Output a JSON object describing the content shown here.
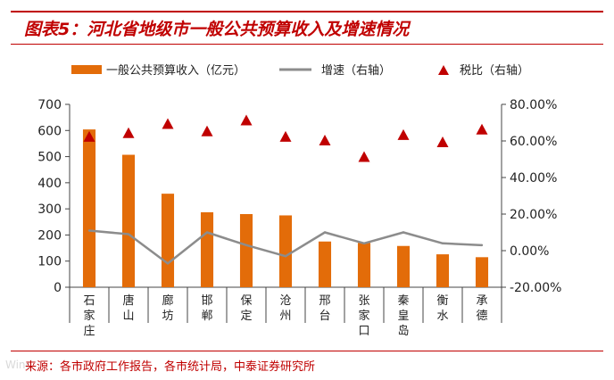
{
  "figure": {
    "title": "图表5：河北省地级市一般公共预算收入及增速情况",
    "source": "来源：各市政府工作报告，各市统计局，中泰证券研究所",
    "watermark": "Wind"
  },
  "colors": {
    "bar": "#e36c09",
    "line": "#8c8c8c",
    "marker": "#c00000",
    "rule": "#c00000"
  },
  "chart_data": {
    "type": "bar",
    "categories": [
      "石家庄",
      "唐山",
      "廊坊",
      "邯郸",
      "保定",
      "沧州",
      "邢台",
      "张家口",
      "秦皇岛",
      "衡水",
      "承德"
    ],
    "series": [
      {
        "name": "一般公共预算收入（亿元）",
        "type": "bar",
        "axis": "left",
        "values": [
          604,
          507,
          358,
          287,
          280,
          275,
          175,
          170,
          158,
          126,
          115
        ]
      },
      {
        "name": "增速（右轴）",
        "type": "line",
        "axis": "right",
        "values": [
          11,
          9,
          -7,
          10,
          3,
          -3,
          10,
          4,
          10,
          4,
          3
        ]
      },
      {
        "name": "税比（右轴）",
        "type": "scatter",
        "axis": "right",
        "marker": "triangle",
        "values": [
          62,
          64,
          69,
          65,
          71,
          62,
          60,
          51,
          63,
          59,
          66
        ]
      }
    ],
    "y_left": {
      "min": 0,
      "max": 700,
      "ticks": [
        "0",
        "100",
        "200",
        "300",
        "400",
        "500",
        "600",
        "700"
      ]
    },
    "y_right": {
      "min": -20,
      "max": 80,
      "ticks": [
        "-20.00%",
        "0.00%",
        "20.00%",
        "40.00%",
        "60.00%",
        "80.00%"
      ]
    },
    "legend": {
      "position": "top"
    },
    "grid": false
  }
}
